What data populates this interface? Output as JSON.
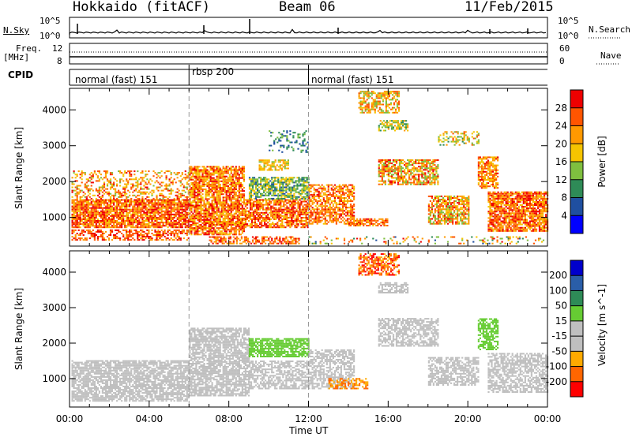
{
  "header": {
    "station": "Hokkaido (fitACF)",
    "beam": "Beam 06",
    "date": "11/Feb/2015"
  },
  "top_panels": {
    "nsky_label": "N.Sky",
    "nsky_ticks": [
      "10^5",
      "10^0"
    ],
    "nsearch_label": "N.Search",
    "nsearch_ticks": [
      "10^5",
      "10^0"
    ],
    "freq_label_1": "Freq.",
    "freq_label_2": "[MHz]",
    "freq_ticks": [
      "12",
      "8"
    ],
    "nave_label": "Nave",
    "nave_ticks": [
      "60",
      "0"
    ],
    "cpid_label": "CPID"
  },
  "cpid_segments": [
    {
      "label": "normal (fast) 151",
      "start_h": 0,
      "end_h": 6
    },
    {
      "label": "rbsp 200",
      "start_h": 6,
      "end_h": 12
    },
    {
      "label": "normal (fast) 151",
      "start_h": 12,
      "end_h": 24
    }
  ],
  "colors": {
    "power_scale": [
      "#0000ff",
      "#1f4fa0",
      "#2e8b57",
      "#7fbf3f",
      "#f5c400",
      "#ff9900",
      "#ff5500",
      "#ee0000"
    ],
    "velocity_scale": [
      "#ff0000",
      "#ff6600",
      "#ffaa00",
      "#bfbfbf",
      "#bfbfbf",
      "#66cc33",
      "#2e8b57",
      "#2a5ea8",
      "#0000cc"
    ]
  },
  "chart_data": [
    {
      "type": "heatmap",
      "title": "",
      "xlabel": "Time UT",
      "ylabel": "Slant Range [km]",
      "x_ticks": [
        "00:00",
        "04:00",
        "08:00",
        "12:00",
        "16:00",
        "20:00",
        "00:00"
      ],
      "xlim_hours": [
        0,
        24
      ],
      "y_ticks": [
        1000,
        2000,
        3000,
        4000
      ],
      "ylim": [
        200,
        4600
      ],
      "colorbar_label": "Power [dB]",
      "colorbar_ticks": [
        28,
        24,
        20,
        16,
        12,
        8,
        4
      ],
      "colorbar_range": [
        0,
        32
      ]
    },
    {
      "type": "heatmap",
      "title": "",
      "xlabel": "Time UT",
      "ylabel": "Slant Range [km]",
      "x_ticks": [
        "00:00",
        "04:00",
        "08:00",
        "12:00",
        "16:00",
        "20:00",
        "00:00"
      ],
      "xlim_hours": [
        0,
        24
      ],
      "y_ticks": [
        1000,
        2000,
        3000,
        4000
      ],
      "ylim": [
        200,
        4600
      ],
      "colorbar_label": "Velocity [m s^-1]",
      "colorbar_ticks": [
        200,
        100,
        50,
        15,
        -15,
        -50,
        -100,
        -200
      ]
    }
  ]
}
